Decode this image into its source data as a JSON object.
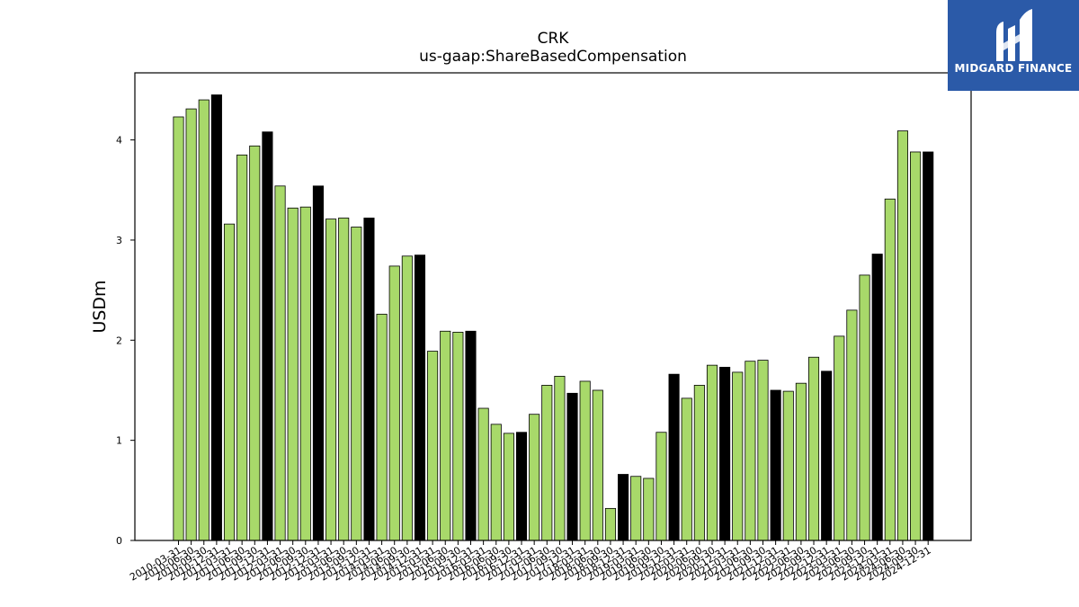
{
  "brand": {
    "name": "MIDGARD FINANCE",
    "background": "#2b5aa8",
    "icon": "midgard-logo-icon"
  },
  "chart_data": {
    "type": "bar",
    "title": "CRK",
    "subtitle": "us-gaap:ShareBasedCompensation",
    "xlabel": "",
    "ylabel": "USDm",
    "ylim": [
      0,
      4.67
    ],
    "yticks": [
      0,
      1,
      2,
      3,
      4
    ],
    "grid": false,
    "colors": {
      "quarter": "#a8d96a",
      "fiscal_year": "#000000",
      "edge": "#000000"
    },
    "categories": [
      "2010-03-31",
      "2010-06-30",
      "2010-09-30",
      "2010-12-31",
      "2011-03-31",
      "2011-06-30",
      "2011-09-30",
      "2011-12-31",
      "2012-03-31",
      "2012-06-30",
      "2012-09-30",
      "2012-12-31",
      "2013-03-31",
      "2013-06-30",
      "2013-09-30",
      "2013-12-31",
      "2014-03-31",
      "2014-06-30",
      "2014-09-30",
      "2014-12-31",
      "2015-03-31",
      "2015-06-30",
      "2015-09-30",
      "2015-12-31",
      "2016-03-31",
      "2016-06-30",
      "2016-09-30",
      "2016-12-31",
      "2017-03-31",
      "2017-06-30",
      "2017-09-30",
      "2017-12-31",
      "2018-03-31",
      "2018-06-30",
      "2018-09-30",
      "2018-12-31",
      "2019-03-31",
      "2019-06-30",
      "2019-09-30",
      "2019-12-31",
      "2020-03-31",
      "2020-06-30",
      "2020-09-30",
      "2020-12-31",
      "2021-03-31",
      "2021-06-30",
      "2021-09-30",
      "2021-12-31",
      "2022-03-31",
      "2022-06-30",
      "2022-09-30",
      "2022-12-31",
      "2023-03-31",
      "2023-06-30",
      "2023-09-30",
      "2023-12-31",
      "2024-03-31",
      "2024-06-30",
      "2024-09-30",
      "2024-12-31"
    ],
    "values": [
      4.23,
      4.31,
      4.4,
      4.45,
      3.16,
      3.85,
      3.94,
      4.08,
      3.54,
      3.32,
      3.33,
      3.54,
      3.21,
      3.22,
      3.13,
      3.22,
      2.26,
      2.74,
      2.84,
      2.85,
      1.89,
      2.09,
      2.08,
      2.09,
      1.32,
      1.16,
      1.07,
      1.08,
      1.26,
      1.55,
      1.64,
      1.47,
      1.59,
      1.5,
      0.32,
      0.66,
      0.64,
      0.62,
      1.08,
      1.66,
      1.42,
      1.55,
      1.75,
      1.73,
      1.68,
      1.79,
      1.8,
      1.5,
      1.49,
      1.57,
      1.83,
      1.69,
      2.04,
      2.3,
      2.65,
      2.86,
      3.41,
      4.09,
      3.88,
      3.88
    ],
    "fiscal_year_end": [
      false,
      false,
      false,
      true,
      false,
      false,
      false,
      true,
      false,
      false,
      false,
      true,
      false,
      false,
      false,
      true,
      false,
      false,
      false,
      true,
      false,
      false,
      false,
      true,
      false,
      false,
      false,
      true,
      false,
      false,
      false,
      true,
      false,
      false,
      false,
      true,
      false,
      false,
      false,
      true,
      false,
      false,
      false,
      true,
      false,
      false,
      false,
      true,
      false,
      false,
      false,
      true,
      false,
      false,
      false,
      true,
      false,
      false,
      false,
      true
    ]
  }
}
